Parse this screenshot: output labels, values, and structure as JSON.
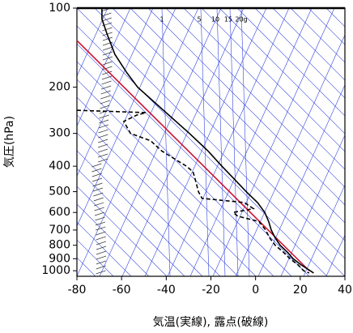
{
  "chart_data": {
    "type": "line",
    "xlabel": "気温(実線), 露点(破線)",
    "ylabel": "気圧(hPa)",
    "xlim": [
      -80,
      40
    ],
    "xticks": [
      -80,
      -60,
      -40,
      -20,
      0,
      20,
      40
    ],
    "ylim": [
      1050,
      100
    ],
    "yticks": [
      100,
      200,
      300,
      400,
      500,
      600,
      700,
      800,
      900,
      1000
    ],
    "ylog": true,
    "annotations": [
      "1",
      "5",
      "10",
      "15",
      "20g"
    ],
    "series": [
      {
        "color": "#cc1133",
        "dash": false,
        "x": [
          -80,
          24
        ],
        "y": [
          133,
          1000
        ]
      },
      {
        "color": "#000000",
        "dash": false,
        "x": [
          -68.8,
          -68.8,
          -66.6,
          -63,
          -57.9,
          -52.8,
          -40.1,
          -29.6,
          -21.3,
          -15.1,
          -9.3,
          -4.2,
          0.9,
          4.1,
          5.9,
          7,
          8.8,
          11,
          14.3,
          16.8,
          20.4,
          24.4,
          26
        ],
        "y": [
          100,
          110,
          125,
          150,
          175,
          200,
          250,
          300,
          350,
          400,
          450,
          500,
          550,
          600,
          650,
          700,
          750,
          800,
          850,
          900,
          950,
          1000,
          1020
        ]
      },
      {
        "color": "#000000",
        "dash": true,
        "x": [
          -80,
          -49,
          -53,
          -59,
          -56,
          -47,
          -42,
          -31,
          -28,
          -27,
          -25.6,
          -24,
          -5,
          -1,
          -10,
          -8,
          1.6,
          4.5,
          6.3,
          8.8,
          12.5,
          15.4,
          19,
          21.5,
          24
        ],
        "y": [
          245,
          250,
          255,
          270,
          300,
          320,
          350,
          400,
          420,
          450,
          500,
          530,
          550,
          580,
          600,
          620,
          650,
          700,
          750,
          800,
          850,
          900,
          950,
          1000,
          1020
        ]
      }
    ]
  }
}
